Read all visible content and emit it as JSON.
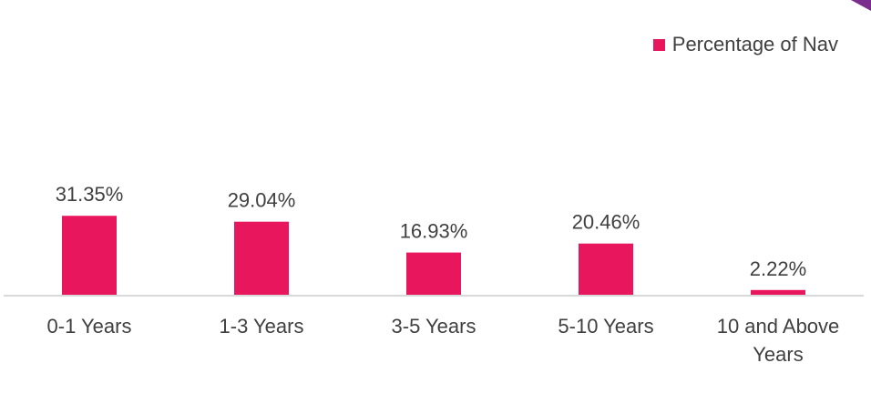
{
  "colors": {
    "bar": "#e8175d",
    "corner_accent": "#7b2d8e",
    "axis": "#d9d9d9",
    "text": "#404040"
  },
  "legend": {
    "label": "Percentage of Nav"
  },
  "chart_data": {
    "type": "bar",
    "title": "",
    "xlabel": "",
    "ylabel": "",
    "categories": [
      [
        "0-1 Years"
      ],
      [
        "1-3 Years"
      ],
      [
        "3-5 Years"
      ],
      [
        "5-10 Years"
      ],
      [
        "10 and Above",
        "Years"
      ]
    ],
    "series": [
      {
        "name": "Percentage of Nav",
        "values": [
          31.35,
          29.04,
          16.93,
          20.46,
          2.22
        ],
        "labels": [
          "31.35%",
          "29.04%",
          "16.93%",
          "20.46%",
          "2.22%"
        ]
      }
    ],
    "ylim": [
      0,
      100
    ],
    "grid": false,
    "legend_position": "top-right",
    "data_labels": true
  }
}
